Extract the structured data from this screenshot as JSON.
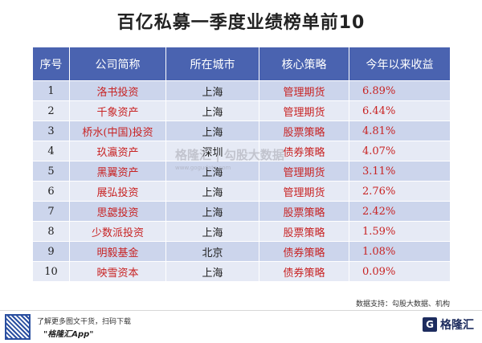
{
  "title": "百亿私募一季度业绩榜单前10",
  "table": {
    "headers": [
      "序号",
      "公司简称",
      "所在城市",
      "核心策略",
      "今年以来收益"
    ],
    "rows": [
      {
        "rank": "1",
        "company": "洛书投资",
        "city": "上海",
        "strategy": "管理期货",
        "return": "6.89%"
      },
      {
        "rank": "2",
        "company": "千象资产",
        "city": "上海",
        "strategy": "管理期货",
        "return": "6.44%"
      },
      {
        "rank": "3",
        "company": "桥水(中国)投资",
        "city": "上海",
        "strategy": "股票策略",
        "return": "4.81%"
      },
      {
        "rank": "4",
        "company": "玖瀛资产",
        "city": "深圳",
        "strategy": "债券策略",
        "return": "4.07%"
      },
      {
        "rank": "5",
        "company": "黑翼资产",
        "city": "上海",
        "strategy": "管理期货",
        "return": "3.11%"
      },
      {
        "rank": "6",
        "company": "展弘投资",
        "city": "上海",
        "strategy": "管理期货",
        "return": "2.76%"
      },
      {
        "rank": "7",
        "company": "思勰投资",
        "city": "上海",
        "strategy": "股票策略",
        "return": "2.42%"
      },
      {
        "rank": "8",
        "company": "少数派投资",
        "city": "上海",
        "strategy": "股票策略",
        "return": "1.59%"
      },
      {
        "rank": "9",
        "company": "明毅基金",
        "city": "北京",
        "strategy": "债券策略",
        "return": "1.08%"
      },
      {
        "rank": "10",
        "company": "映雪资本",
        "city": "上海",
        "strategy": "债券策略",
        "return": "0.09%"
      }
    ]
  },
  "watermark": {
    "text": "格隆汇 | 勾股大数据",
    "url": "www.gogudata.com"
  },
  "source": "数据支持：勾股大数据、机构",
  "footer": {
    "line1": "了解更多图文干货，扫码下载",
    "line2": "\"格隆汇App\"",
    "brand": "格隆汇",
    "brand_icon_letter": "G"
  },
  "colors": {
    "header": "#4a63b0",
    "row_odd": "#ccd5ec",
    "row_even": "#e6eaf5",
    "accent_red": "#c82323"
  }
}
